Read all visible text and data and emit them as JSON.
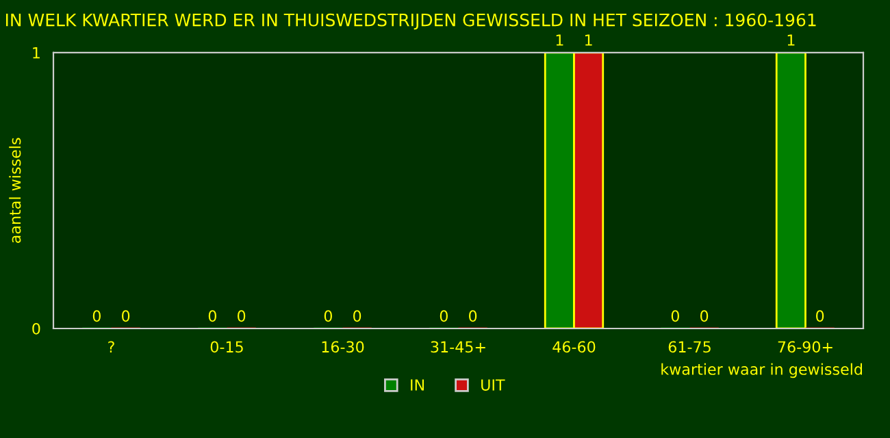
{
  "chart_data": {
    "type": "bar",
    "title": "IN WELK KWARTIER WERD ER IN THUISWEDSTRIJDEN GEWISSELD IN HET SEIZOEN : 1960-1961",
    "xlabel": "kwartier waar in gewisseld",
    "ylabel": "aantal wissels",
    "categories": [
      "?",
      "0-15",
      "16-30",
      "31-45+",
      "46-60",
      "61-75",
      "76-90+"
    ],
    "series": [
      {
        "name": "IN",
        "color": "#008000",
        "values": [
          0,
          0,
          0,
          0,
          1,
          0,
          1
        ]
      },
      {
        "name": "UIT",
        "color": "#cc1111",
        "values": [
          0,
          0,
          0,
          0,
          1,
          0,
          0
        ]
      }
    ],
    "ylim": [
      0,
      1
    ],
    "yticks": [
      0,
      1
    ],
    "grid": false,
    "legend": "bottom",
    "data_labels": true
  }
}
